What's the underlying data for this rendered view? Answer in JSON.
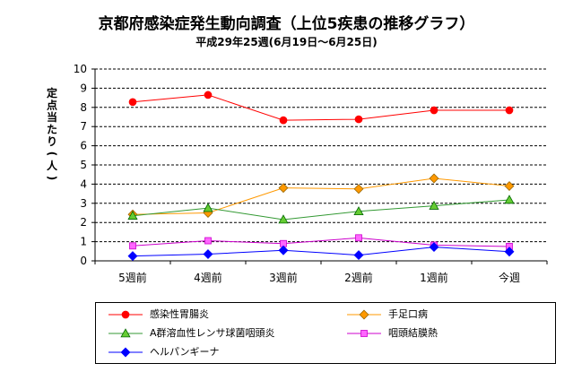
{
  "page": {
    "title": "京都府感染症発生動向調査（上位5疾患の推移グラフ）",
    "subtitle": "平成29年25週(6月19日～6月25日)"
  },
  "chart_data": {
    "type": "line",
    "categories": [
      "5週前",
      "4週前",
      "3週前",
      "2週前",
      "1週前",
      "今週"
    ],
    "ylabel": "定点当たり(人)",
    "xlabel": "",
    "ylim": [
      0,
      10
    ],
    "yticks": [
      0,
      1,
      2,
      3,
      4,
      5,
      6,
      7,
      8,
      9,
      10
    ],
    "grid": "horizontal dashed",
    "legend_position": "bottom",
    "series": [
      {
        "name": "感染性胃腸炎",
        "color": "#ff0000",
        "marker": "circle",
        "values": [
          8.28,
          8.65,
          7.33,
          7.38,
          7.85,
          7.85
        ]
      },
      {
        "name": "手足口病",
        "color": "#ff9900",
        "marker": "diamond",
        "values": [
          2.42,
          2.5,
          3.8,
          3.75,
          4.3,
          3.9
        ]
      },
      {
        "name": "A群溶血性レンサ球菌咽頭炎",
        "color": "#339933",
        "marker": "triangle",
        "values": [
          2.35,
          2.75,
          2.15,
          2.58,
          2.87,
          3.18
        ]
      },
      {
        "name": "咽頭結膜熱",
        "color": "#cc00cc",
        "marker": "square",
        "values": [
          0.78,
          1.05,
          0.9,
          1.2,
          0.82,
          0.75
        ]
      },
      {
        "name": "ヘルパンギーナ",
        "color": "#0000ff",
        "marker": "diamond",
        "values": [
          0.25,
          0.35,
          0.55,
          0.3,
          0.72,
          0.48
        ]
      }
    ]
  }
}
